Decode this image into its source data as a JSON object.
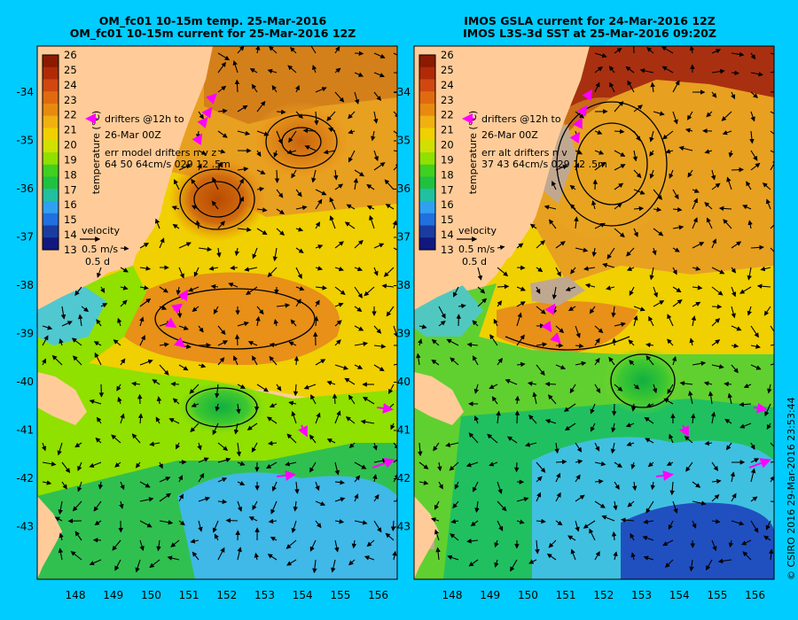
{
  "left_panel": {
    "title_line1": "OM_fc01 10-15m temp. 25-Mar-2016",
    "title_line2": "OM_fc01 10-15m current for 25-Mar-2016 12Z",
    "legend_drifters": "drifters @12h to",
    "legend_drifters_2": "26-Mar 00Z",
    "legend_err_1": "err model drifters n v z",
    "legend_err_2": "64 50 64cm/s 029 12 .5m"
  },
  "right_panel": {
    "title_line1": "IMOS GSLA current for 24-Mar-2016 12Z",
    "title_line2": "IMOS L3S-3d SST at 25-Mar-2016 09:20Z",
    "legend_drifters": "drifters @12h to",
    "legend_drifters_2": "26-Mar 00Z",
    "legend_err_1": "err alt drifters n v",
    "legend_err_2": "37 43 64cm/s 029 12 .5m"
  },
  "velocity_key": {
    "label": "velocity",
    "speed": "0.5 m/s",
    "time": "0.5 d"
  },
  "colorbar": {
    "label": "temperature (°C)",
    "ticks": [
      "26",
      "25",
      "24",
      "23",
      "22",
      "21",
      "20",
      "19",
      "18",
      "17",
      "16",
      "15",
      "14",
      "13"
    ]
  },
  "axes": {
    "lat_ticks": [
      "-34",
      "-35",
      "-36",
      "-37",
      "-38",
      "-39",
      "-40",
      "-41",
      "-42",
      "-43"
    ],
    "lon_ticks": [
      "148",
      "149",
      "150",
      "151",
      "152",
      "153",
      "154",
      "155",
      "156"
    ]
  },
  "credit": "© CSIRO 2016  29-Mar-2016 23:53:44",
  "colors": {
    "background": "#00ccff",
    "land": "#ffcc99",
    "drifters": "#ff00ff",
    "t26": "#8b1a00",
    "t24": "#e88a10",
    "t22": "#f0d000",
    "t20": "#90e000",
    "t18": "#20c040",
    "t16": "#30a0f0",
    "t14": "#1a3ca0"
  }
}
